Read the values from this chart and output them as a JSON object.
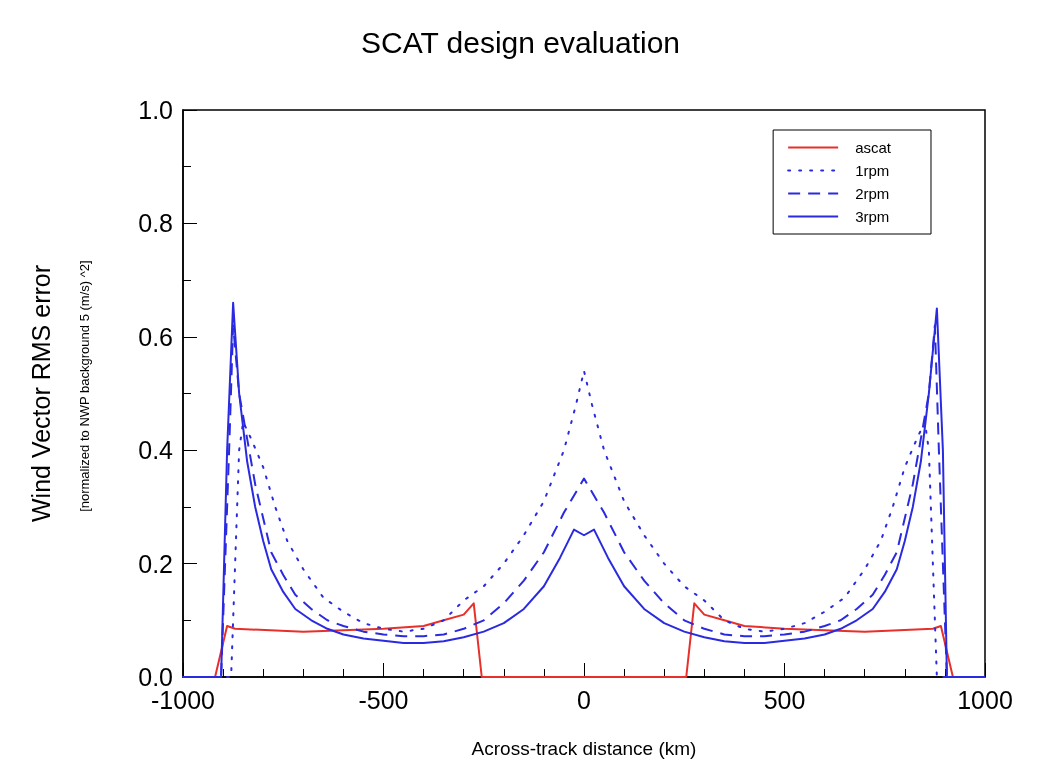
{
  "chart_data": {
    "type": "line",
    "title": "SCAT design evaluation",
    "xlabel": "Across-track distance (km)",
    "ylabel": "Wind Vector RMS error",
    "annotations": [
      "[normalized to NWP background 5 (m/s) ^2]"
    ],
    "xlim": [
      -1000,
      1000
    ],
    "xticks": [
      -1000,
      -500,
      0,
      500,
      1000
    ],
    "ylim": [
      0,
      1
    ],
    "yticks": [
      {
        "value": 0,
        "label": "0.0"
      },
      0.2,
      0.4,
      0.6,
      0.8,
      {
        "value": 1,
        "label": "1.0"
      }
    ],
    "legend": "top right",
    "marker": "none",
    "grid": false,
    "series": [
      {
        "name": "ascat",
        "color": "#e8302a",
        "line_style": "solid",
        "x": [
          -1000,
          -920,
          -890,
          -870,
          -700,
          -500,
          -400,
          -350,
          -300,
          -275,
          -255,
          255,
          275,
          300,
          350,
          400,
          500,
          700,
          870,
          890,
          920,
          1000
        ],
        "values": [
          0,
          0,
          0.09,
          0.085,
          0.08,
          0.085,
          0.09,
          0.1,
          0.11,
          0.13,
          0,
          0,
          0.13,
          0.11,
          0.1,
          0.09,
          0.085,
          0.08,
          0.085,
          0.09,
          0,
          0
        ]
      },
      {
        "name": "1rpm",
        "color": "#2a2ae0",
        "line_style": "dotted",
        "x": [
          -1000,
          -880,
          -870,
          -860,
          -850,
          -830,
          -800,
          -770,
          -740,
          -700,
          -650,
          -600,
          -550,
          -500,
          -450,
          -400,
          -350,
          -300,
          -250,
          -200,
          -150,
          -100,
          -50,
          -20,
          0,
          20,
          50,
          100,
          150,
          200,
          250,
          300,
          350,
          400,
          450,
          500,
          550,
          600,
          650,
          700,
          740,
          770,
          800,
          830,
          850,
          860,
          870,
          880,
          1000
        ],
        "values": [
          0,
          0,
          0.2,
          0.4,
          0.45,
          0.42,
          0.37,
          0.3,
          0.24,
          0.19,
          0.14,
          0.115,
          0.095,
          0.085,
          0.08,
          0.085,
          0.1,
          0.135,
          0.16,
          0.2,
          0.25,
          0.31,
          0.4,
          0.48,
          0.54,
          0.48,
          0.4,
          0.31,
          0.25,
          0.2,
          0.16,
          0.135,
          0.1,
          0.085,
          0.08,
          0.085,
          0.095,
          0.115,
          0.14,
          0.19,
          0.24,
          0.3,
          0.37,
          0.42,
          0.45,
          0.4,
          0.2,
          0,
          0
        ]
      },
      {
        "name": "2rpm",
        "color": "#2a2ae0",
        "line_style": "dashed",
        "x": [
          -1000,
          -905,
          -885,
          -875,
          -860,
          -840,
          -820,
          -800,
          -780,
          -750,
          -720,
          -680,
          -640,
          -600,
          -550,
          -500,
          -450,
          -400,
          -350,
          -300,
          -250,
          -200,
          -150,
          -100,
          -50,
          0,
          50,
          100,
          150,
          200,
          250,
          300,
          350,
          400,
          450,
          500,
          550,
          600,
          640,
          680,
          720,
          750,
          780,
          800,
          820,
          840,
          860,
          875,
          885,
          905,
          1000
        ],
        "values": [
          0,
          0,
          0.4,
          0.62,
          0.5,
          0.42,
          0.34,
          0.28,
          0.22,
          0.18,
          0.145,
          0.12,
          0.1,
          0.09,
          0.08,
          0.075,
          0.072,
          0.072,
          0.075,
          0.085,
          0.1,
          0.13,
          0.17,
          0.22,
          0.29,
          0.35,
          0.29,
          0.22,
          0.17,
          0.13,
          0.1,
          0.085,
          0.075,
          0.072,
          0.072,
          0.075,
          0.08,
          0.09,
          0.1,
          0.12,
          0.145,
          0.18,
          0.22,
          0.28,
          0.34,
          0.42,
          0.5,
          0.62,
          0.4,
          0,
          0
        ]
      },
      {
        "name": "3rpm",
        "color": "#2a2ae0",
        "line_style": "solid",
        "x": [
          -1000,
          -905,
          -890,
          -875,
          -860,
          -840,
          -820,
          -800,
          -780,
          -750,
          -720,
          -680,
          -640,
          -600,
          -550,
          -500,
          -450,
          -400,
          -350,
          -300,
          -250,
          -200,
          -150,
          -100,
          -60,
          -25,
          0,
          25,
          60,
          100,
          150,
          200,
          250,
          300,
          350,
          400,
          450,
          500,
          550,
          600,
          640,
          680,
          720,
          750,
          780,
          800,
          820,
          840,
          860,
          880,
          895,
          905,
          920,
          1000
        ],
        "values": [
          0,
          0,
          0.4,
          0.66,
          0.5,
          0.38,
          0.3,
          0.24,
          0.19,
          0.15,
          0.12,
          0.1,
          0.085,
          0.075,
          0.068,
          0.064,
          0.06,
          0.06,
          0.063,
          0.07,
          0.08,
          0.095,
          0.12,
          0.16,
          0.21,
          0.26,
          0.25,
          0.26,
          0.21,
          0.16,
          0.12,
          0.095,
          0.08,
          0.07,
          0.063,
          0.06,
          0.06,
          0.064,
          0.068,
          0.075,
          0.085,
          0.1,
          0.12,
          0.15,
          0.19,
          0.24,
          0.3,
          0.38,
          0.5,
          0.65,
          0.4,
          0,
          0,
          0
        ]
      }
    ]
  }
}
